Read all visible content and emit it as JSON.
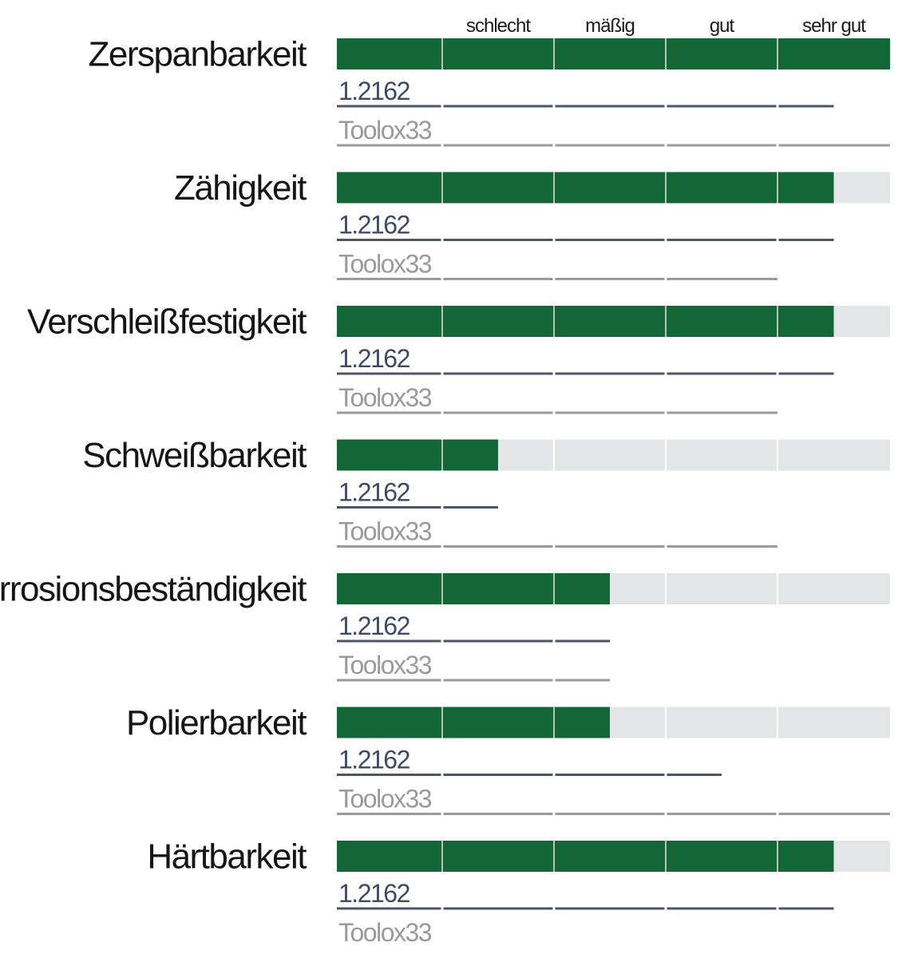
{
  "chart_data": {
    "type": "bar",
    "scale_labels": [
      "schlecht",
      "mäßig",
      "gut",
      "sehr gut"
    ],
    "xlim": [
      0,
      5
    ],
    "categories": [
      "Zerspanbarkeit",
      "Zähigkeit",
      "Verschleißfestigkeit",
      "Schweißbarkeit",
      "Korrosionsbeständigkeit",
      "Polierbarkeit",
      "Härtbarkeit"
    ],
    "values": [
      5.0,
      4.5,
      4.5,
      1.5,
      2.5,
      2.5,
      4.5
    ],
    "materials": [
      {
        "name": "1.2162",
        "values": [
          4.5,
          4.5,
          4.5,
          1.5,
          2.5,
          3.5,
          4.5
        ]
      },
      {
        "name": "Toolox33",
        "values": [
          5.0,
          4.0,
          4.0,
          4.0,
          2.5,
          5.0,
          0
        ]
      }
    ],
    "colors": {
      "bar": "#136737",
      "track": "#e4e5e7",
      "line_1.2162": "#4a5568",
      "line_toolox": "#9a9a9a",
      "divider": "#b9c3b3"
    },
    "grid": true
  }
}
